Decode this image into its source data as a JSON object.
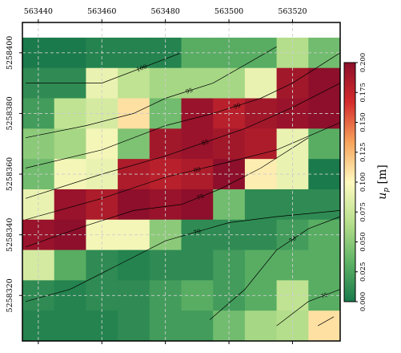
{
  "chart_data": {
    "type": "heatmap",
    "x_ticks": [
      563440,
      563460,
      563480,
      563500,
      563520
    ],
    "y_ticks": [
      5258320,
      5258340,
      5258360,
      5258380,
      5258400
    ],
    "x_cell_edges": [
      563435,
      563445,
      563455,
      563465,
      563475,
      563485,
      563495,
      563505,
      563515,
      563525,
      563535
    ],
    "y_cell_edges": [
      5258405,
      5258395,
      5258385,
      5258375,
      5258365,
      5258355,
      5258345,
      5258335,
      5258325,
      5258315,
      5258305
    ],
    "xlim": [
      563435,
      563535
    ],
    "ylim": [
      5258305,
      5258410
    ],
    "grid": true,
    "values": [
      [
        0.0,
        0.0,
        0.005,
        0.005,
        0.005,
        0.03,
        0.03,
        0.03,
        0.065,
        0.04
      ],
      [
        0.01,
        0.01,
        0.09,
        0.07,
        0.06,
        0.06,
        0.06,
        0.09,
        0.19,
        0.2
      ],
      [
        0.02,
        0.07,
        0.08,
        0.11,
        0.04,
        0.195,
        0.18,
        0.19,
        0.195,
        0.2
      ],
      [
        0.05,
        0.06,
        0.095,
        0.045,
        0.19,
        0.195,
        0.19,
        0.185,
        0.09,
        0.03
      ],
      [
        0.04,
        0.095,
        0.09,
        0.185,
        0.18,
        0.185,
        0.2,
        0.105,
        0.09,
        0.0
      ],
      [
        0.09,
        0.195,
        0.185,
        0.2,
        0.195,
        0.2,
        0.04,
        0.01,
        0.01,
        0.01
      ],
      [
        0.195,
        0.2,
        0.095,
        0.095,
        0.05,
        0.01,
        0.01,
        0.01,
        0.02,
        0.03
      ],
      [
        0.08,
        0.03,
        0.01,
        0.005,
        0.01,
        0.01,
        0.02,
        0.03,
        0.03,
        0.03
      ],
      [
        0.01,
        0.005,
        0.01,
        0.01,
        0.02,
        0.03,
        0.02,
        0.03,
        0.07,
        0.03
      ],
      [
        0.005,
        0.005,
        0.005,
        0.01,
        0.02,
        0.02,
        0.04,
        0.06,
        0.065,
        0.11
      ]
    ],
    "colormap": [
      "#1a7a4b",
      "#5fb366",
      "#b8e08d",
      "#fffac0",
      "#f7a45c",
      "#d42c2c",
      "#8d0f2b"
    ],
    "colorbar": {
      "label": "u_p [m]",
      "min": 0.0,
      "max": 0.2,
      "ticks": [
        "0.000",
        "0.025",
        "0.050",
        "0.075",
        "0.100",
        "0.125",
        "0.150",
        "0.175",
        "0.200"
      ]
    },
    "contours": [
      {
        "label": "100",
        "points": [
          [
            563436,
            5258390
          ],
          [
            563460,
            5258390
          ],
          [
            563485,
            5258400
          ]
        ]
      },
      {
        "label": "95",
        "points": [
          [
            563436,
            5258372
          ],
          [
            563455,
            5258376
          ],
          [
            563470,
            5258380
          ],
          [
            563480,
            5258385
          ],
          [
            563495,
            5258390
          ],
          [
            563505,
            5258396
          ],
          [
            563515,
            5258402
          ]
        ]
      },
      {
        "label": "90",
        "points": [
          [
            563436,
            5258362
          ],
          [
            563460,
            5258368
          ],
          [
            563480,
            5258376
          ],
          [
            563495,
            5258380
          ],
          [
            563510,
            5258385
          ],
          [
            563520,
            5258390
          ],
          [
            563535,
            5258400
          ]
        ]
      },
      {
        "label": "85",
        "points": [
          [
            563436,
            5258352
          ],
          [
            563460,
            5258360
          ],
          [
            563480,
            5258366
          ],
          [
            563505,
            5258375
          ],
          [
            563520,
            5258382
          ],
          [
            563535,
            5258390
          ]
        ]
      },
      {
        "label": "80",
        "points": [
          [
            563436,
            5258345
          ],
          [
            563460,
            5258352
          ],
          [
            563480,
            5258359
          ],
          [
            563500,
            5258364
          ],
          [
            563515,
            5258368
          ],
          [
            563535,
            5258377
          ]
        ]
      },
      {
        "label": "75",
        "points": [
          [
            563436,
            5258336
          ],
          [
            563455,
            5258343
          ],
          [
            563470,
            5258348
          ],
          [
            563485,
            5258350
          ],
          [
            563497,
            5258355
          ],
          [
            563510,
            5258362
          ],
          [
            563525,
            5258372
          ]
        ]
      },
      {
        "label": "70",
        "points": [
          [
            563436,
            5258318
          ],
          [
            563450,
            5258322
          ],
          [
            563465,
            5258330
          ],
          [
            563480,
            5258338
          ],
          [
            563500,
            5258344
          ],
          [
            563515,
            5258346
          ],
          [
            563535,
            5258348
          ]
        ]
      },
      {
        "label": "70",
        "points": [
          [
            563494,
            5258312
          ],
          [
            563505,
            5258322
          ],
          [
            563515,
            5258335
          ],
          [
            563525,
            5258342
          ],
          [
            563535,
            5258346
          ]
        ]
      },
      {
        "label": "75",
        "points": [
          [
            563515,
            5258310
          ],
          [
            563525,
            5258318
          ],
          [
            563535,
            5258322
          ]
        ]
      },
      {
        "label": "",
        "points": [
          [
            563528,
            5258310
          ],
          [
            563533,
            5258313
          ]
        ]
      }
    ]
  }
}
